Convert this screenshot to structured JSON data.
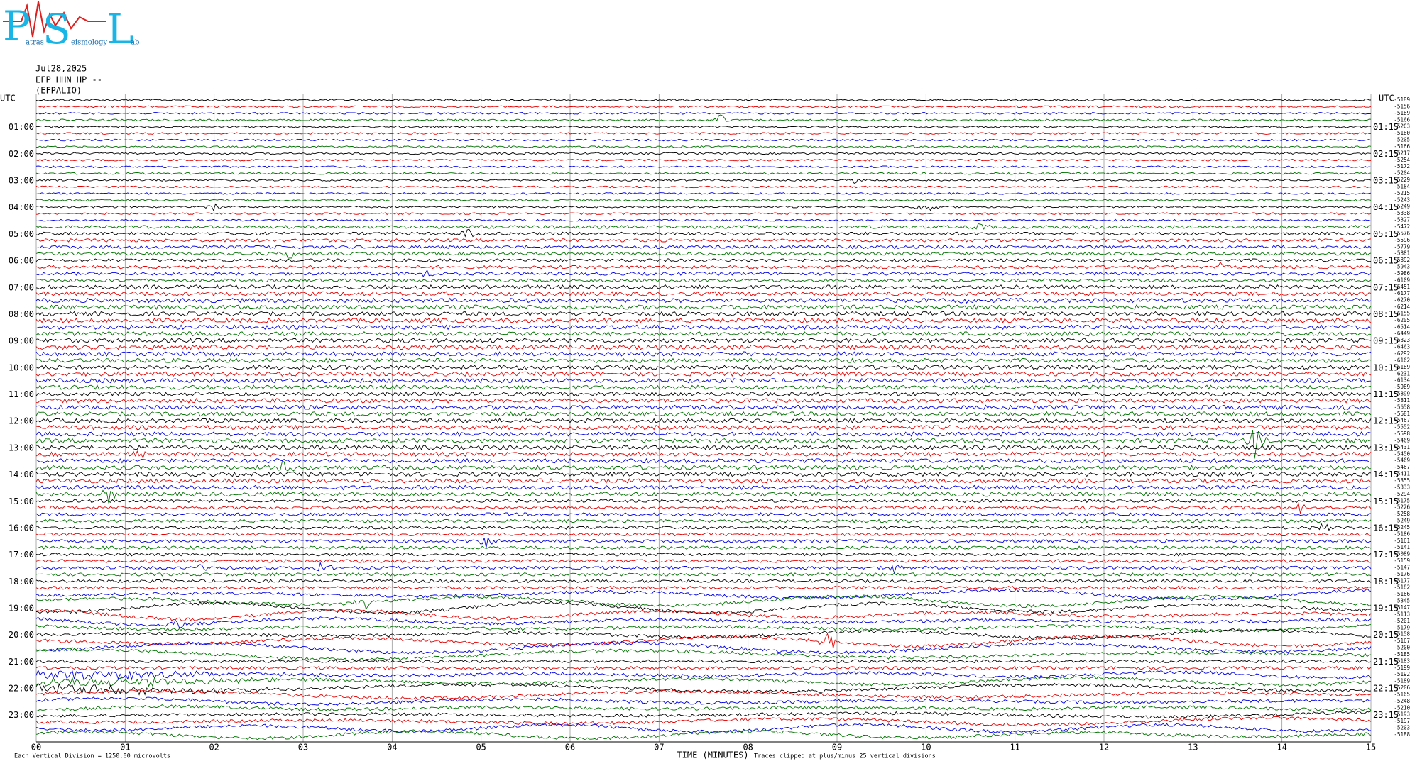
{
  "header": {
    "logo_letters": [
      "P",
      "S",
      "L"
    ],
    "logo_words": [
      "atras",
      "eismology",
      "ab"
    ],
    "date": "Jul28,2025",
    "channel": "EFP HHN HP --",
    "station": "(EFPALIO)"
  },
  "left_labels": [
    "UTC",
    "01:00",
    "02:00",
    "03:00",
    "04:00",
    "05:00",
    "06:00",
    "07:00",
    "08:00",
    "09:00",
    "10:00",
    "11:00",
    "12:00",
    "13:00",
    "14:00",
    "15:00",
    "16:00",
    "17:00",
    "18:00",
    "19:00",
    "20:00",
    "21:00",
    "22:00",
    "23:00"
  ],
  "right_labels": [
    "UTC",
    "01:15",
    "02:15",
    "03:15",
    "04:15",
    "05:15",
    "06:15",
    "07:15",
    "08:15",
    "09:15",
    "10:15",
    "11:15",
    "12:15",
    "13:15",
    "14:15",
    "15:15",
    "16:15",
    "17:15",
    "18:15",
    "19:15",
    "20:15",
    "21:15",
    "22:15",
    "23:15"
  ],
  "trace_colors": [
    "#000000",
    "#e00000",
    "#0000e0",
    "#007000"
  ],
  "row_offsets": [
    "-5189",
    "-5156",
    "-5189",
    "-5166",
    "-5203",
    "-5180",
    "-5205",
    "-5166",
    "-5217",
    "-5254",
    "-5172",
    "-5204",
    "-5229",
    "-5184",
    "-5215",
    "-5243",
    "-5249",
    "-5338",
    "-5327",
    "-5472",
    "-5576",
    "-5596",
    "-5779",
    "-5881",
    "-5892",
    "-5943",
    "-5986",
    "-6109",
    "-6451",
    "-6177",
    "-6270",
    "-6214",
    "-6155",
    "-6205",
    "-6514",
    "-6449",
    "-6323",
    "-6463",
    "-6292",
    "-6162",
    "-6189",
    "-6231",
    "-6134",
    "-5989",
    "-5899",
    "-5811",
    "-5658",
    "-5681",
    "-5467",
    "-5552",
    "-5598",
    "-5469",
    "-5431",
    "-5450",
    "-5469",
    "-5467",
    "-5411",
    "-5355",
    "-5333",
    "-5294",
    "-5175",
    "-5226",
    "-5258",
    "-5249",
    "-5245",
    "-5186",
    "-5161",
    "-5141",
    "-5089",
    "-5159",
    "-5147",
    "-5176",
    "-5177",
    "-5182",
    "-5166",
    "-5345",
    "-5147",
    "-5113",
    "-5201",
    "-5179",
    "-5158",
    "-5167",
    "-5200",
    "-5185",
    "-5183",
    "-5199",
    "-5192",
    "-5189",
    "-5206",
    "-5165",
    "-5248",
    "-5210",
    "-5193",
    "-5197",
    "-5203",
    "-5188"
  ],
  "x_axis": {
    "ticks": [
      "00",
      "01",
      "02",
      "03",
      "04",
      "05",
      "06",
      "07",
      "08",
      "09",
      "10",
      "11",
      "12",
      "13",
      "14",
      "15"
    ],
    "title": "TIME (MINUTES)"
  },
  "footer": {
    "scale_note": "Each Vertical Division = 1250.00 microvolts",
    "clip_note": "Traces clipped at plus/minus 25 vertical divisions"
  }
}
